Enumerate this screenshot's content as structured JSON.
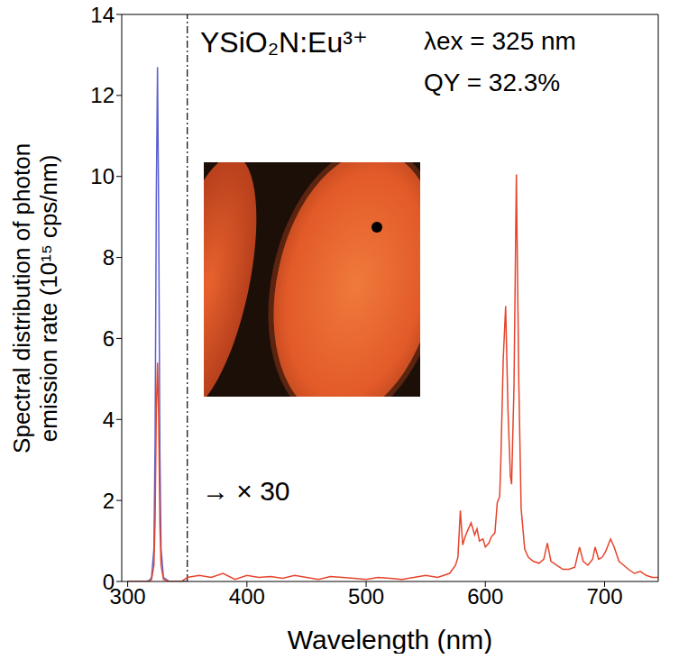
{
  "chart_data": {
    "type": "line",
    "title": "YSiO₂N:Eu³⁺",
    "x_label": "Wavelength (nm)",
    "y_label": "Spectral distribution of photon emission rate (10¹⁵ cps/nm)",
    "annotations": [
      "λex = 325 nm",
      "QY = 32.3%",
      "→ × 30"
    ],
    "divider_x": 350,
    "grid": false,
    "xlim": [
      295,
      745
    ],
    "xticks": [
      300,
      400,
      500,
      600,
      700
    ],
    "ylim": [
      0,
      14
    ],
    "yticks": [
      0,
      2,
      4,
      6,
      8,
      10,
      12,
      14
    ],
    "x": [
      300,
      305,
      310,
      315,
      318,
      320,
      322,
      323,
      324,
      325,
      326,
      327,
      328,
      330,
      335,
      340,
      345,
      350,
      360,
      370,
      380,
      390,
      400,
      410,
      420,
      430,
      440,
      450,
      460,
      470,
      480,
      490,
      500,
      510,
      520,
      530,
      540,
      550,
      560,
      570,
      575,
      577,
      579,
      581,
      583,
      585,
      588,
      591,
      593,
      595,
      598,
      600,
      603,
      605,
      608,
      610,
      612,
      613,
      615,
      617,
      619,
      621,
      622,
      624,
      626,
      628,
      630,
      633,
      636,
      640,
      645,
      649,
      652,
      655,
      660,
      665,
      670,
      675,
      679,
      682,
      686,
      690,
      692,
      695,
      698,
      701,
      705,
      708,
      712,
      716,
      720,
      725,
      730,
      735,
      740,
      745
    ],
    "series": [
      {
        "color": "#5a5fd0",
        "values": [
          0,
          0,
          0,
          0,
          0.02,
          0.1,
          0.8,
          3.5,
          9.5,
          12.7,
          9,
          3.2,
          0.8,
          0.1,
          0,
          0,
          0,
          0,
          null,
          null,
          null,
          null,
          null,
          null,
          null,
          null,
          null,
          null,
          null,
          null,
          null,
          null,
          null,
          null,
          null,
          null,
          null,
          null,
          null,
          null,
          null,
          null,
          null,
          null,
          null,
          null,
          null,
          null,
          null,
          null,
          null,
          null,
          null,
          null,
          null,
          null,
          null,
          null,
          null,
          null,
          null,
          null,
          null,
          null,
          null,
          null,
          null,
          null,
          null,
          null,
          null,
          null,
          null,
          null,
          null,
          null,
          null,
          null,
          null,
          null,
          null,
          null,
          null,
          null,
          null,
          null,
          null,
          null,
          null,
          null,
          null,
          null,
          null,
          null,
          null,
          null
        ]
      },
      {
        "color": "#e5452c",
        "values": [
          0,
          0,
          0,
          0,
          0.01,
          0.05,
          0.4,
          1.5,
          4.2,
          5.4,
          4,
          1.4,
          0.4,
          0.05,
          0,
          0,
          0,
          0.1,
          0.15,
          0.1,
          0.2,
          0.05,
          0.15,
          0.1,
          0.12,
          0.08,
          0.15,
          0.1,
          0.05,
          0.12,
          0.1,
          0.08,
          0.05,
          0.1,
          0.08,
          0.05,
          0.1,
          0.15,
          0.1,
          0.2,
          0.4,
          0.6,
          1.75,
          0.9,
          1.1,
          1.25,
          1.45,
          1.15,
          1.3,
          1.0,
          1.05,
          0.85,
          0.95,
          1.1,
          1.2,
          1.95,
          2.1,
          3.0,
          5.5,
          6.8,
          4.2,
          2.6,
          2.4,
          4.8,
          10.05,
          5.0,
          1.8,
          0.8,
          0.6,
          0.5,
          0.45,
          0.55,
          0.95,
          0.5,
          0.4,
          0.3,
          0.3,
          0.35,
          0.85,
          0.5,
          0.4,
          0.55,
          0.85,
          0.55,
          0.6,
          0.75,
          1.05,
          0.85,
          0.5,
          0.4,
          0.3,
          0.2,
          0.25,
          0.15,
          0.1,
          0.1
        ]
      }
    ]
  }
}
